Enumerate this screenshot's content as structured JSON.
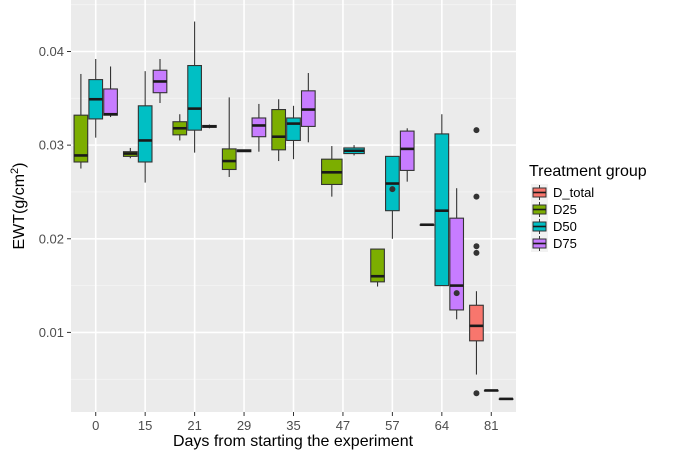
{
  "chart_data": {
    "type": "boxplot",
    "title": "",
    "xlabel": "Days from starting the experiment",
    "ylabel": "EWT(g/cm²)",
    "ylabel_parts": {
      "base": "EWT(g/cm",
      "sup": "2",
      "close": ")"
    },
    "ylim": [
      0.0015,
      0.0455
    ],
    "yticks": [
      0.01,
      0.02,
      0.03,
      0.04
    ],
    "ytick_labels": [
      "0.01",
      "0.02",
      "0.03",
      "0.04"
    ],
    "grid": true,
    "legend_position": "right",
    "categories": [
      "0",
      "15",
      "21",
      "29",
      "35",
      "47",
      "57",
      "64",
      "81"
    ],
    "legend_title": "Treatment group",
    "groups": [
      "D_total",
      "D25",
      "D50",
      "D75"
    ],
    "colors": {
      "D_total": "#F8766D",
      "D25": "#7CAE00",
      "D50": "#00BFC4",
      "D75": "#C77CFF"
    },
    "boxes": [
      {
        "day": "0",
        "group": "D25",
        "whisker_low": 0.0275,
        "q1": 0.0282,
        "median": 0.0289,
        "q3": 0.0332,
        "whisker_high": 0.0376,
        "outliers": []
      },
      {
        "day": "0",
        "group": "D50",
        "whisker_low": 0.0308,
        "q1": 0.0328,
        "median": 0.0349,
        "q3": 0.037,
        "whisker_high": 0.0392,
        "outliers": []
      },
      {
        "day": "0",
        "group": "D75",
        "whisker_low": 0.033,
        "q1": 0.0332,
        "median": 0.0333,
        "q3": 0.036,
        "whisker_high": 0.0384,
        "outliers": []
      },
      {
        "day": "15",
        "group": "D25",
        "whisker_low": 0.0286,
        "q1": 0.0288,
        "median": 0.0291,
        "q3": 0.0293,
        "whisker_high": 0.0297,
        "outliers": []
      },
      {
        "day": "15",
        "group": "D50",
        "whisker_low": 0.026,
        "q1": 0.0282,
        "median": 0.0305,
        "q3": 0.0342,
        "whisker_high": 0.0379,
        "outliers": []
      },
      {
        "day": "15",
        "group": "D75",
        "whisker_low": 0.0345,
        "q1": 0.0356,
        "median": 0.0368,
        "q3": 0.038,
        "whisker_high": 0.0392,
        "outliers": []
      },
      {
        "day": "21",
        "group": "D25",
        "whisker_low": 0.0305,
        "q1": 0.0311,
        "median": 0.0318,
        "q3": 0.0325,
        "whisker_high": 0.0333,
        "outliers": []
      },
      {
        "day": "21",
        "group": "D50",
        "whisker_low": 0.0292,
        "q1": 0.0316,
        "median": 0.0339,
        "q3": 0.0385,
        "whisker_high": 0.0432,
        "outliers": []
      },
      {
        "day": "21",
        "group": "D75",
        "whisker_low": 0.0318,
        "q1": 0.0319,
        "median": 0.032,
        "q3": 0.0321,
        "whisker_high": 0.0322,
        "outliers": []
      },
      {
        "day": "29",
        "group": "D25",
        "whisker_low": 0.0266,
        "q1": 0.0274,
        "median": 0.0283,
        "q3": 0.0296,
        "whisker_high": 0.0351,
        "outliers": []
      },
      {
        "day": "29",
        "group": "D50",
        "whisker_low": 0.0293,
        "q1": 0.0293,
        "median": 0.0294,
        "q3": 0.0295,
        "whisker_high": 0.0295,
        "outliers": []
      },
      {
        "day": "29",
        "group": "D75",
        "whisker_low": 0.0293,
        "q1": 0.0309,
        "median": 0.0321,
        "q3": 0.0329,
        "whisker_high": 0.0344,
        "outliers": []
      },
      {
        "day": "35",
        "group": "D25",
        "whisker_low": 0.0283,
        "q1": 0.0295,
        "median": 0.0309,
        "q3": 0.0338,
        "whisker_high": 0.0349,
        "outliers": []
      },
      {
        "day": "35",
        "group": "D50",
        "whisker_low": 0.0285,
        "q1": 0.0305,
        "median": 0.0323,
        "q3": 0.0329,
        "whisker_high": 0.0342,
        "outliers": []
      },
      {
        "day": "35",
        "group": "D75",
        "whisker_low": 0.0303,
        "q1": 0.032,
        "median": 0.0338,
        "q3": 0.0358,
        "whisker_high": 0.0377,
        "outliers": []
      },
      {
        "day": "47",
        "group": "D25",
        "whisker_low": 0.0245,
        "q1": 0.0258,
        "median": 0.0271,
        "q3": 0.0285,
        "whisker_high": 0.0299,
        "outliers": []
      },
      {
        "day": "47",
        "group": "D50",
        "whisker_low": 0.0289,
        "q1": 0.0291,
        "median": 0.0294,
        "q3": 0.0297,
        "whisker_high": 0.03,
        "outliers": []
      },
      {
        "day": "57",
        "group": "D25",
        "whisker_low": 0.0149,
        "q1": 0.0154,
        "median": 0.016,
        "q3": 0.0189,
        "whisker_high": 0.0189,
        "outliers": []
      },
      {
        "day": "57",
        "group": "D50",
        "whisker_low": 0.02,
        "q1": 0.023,
        "median": 0.0259,
        "q3": 0.0288,
        "whisker_high": 0.0288,
        "outliers": [
          0.0253
        ]
      },
      {
        "day": "57",
        "group": "D75",
        "whisker_low": 0.0261,
        "q1": 0.0273,
        "median": 0.0296,
        "q3": 0.0315,
        "whisker_high": 0.0318,
        "outliers": []
      },
      {
        "day": "64",
        "group": "D25",
        "whisker_low": 0.0215,
        "q1": 0.0215,
        "median": 0.0215,
        "q3": 0.0215,
        "whisker_high": 0.0215,
        "outliers": []
      },
      {
        "day": "64",
        "group": "D50",
        "whisker_low": 0.015,
        "q1": 0.015,
        "median": 0.023,
        "q3": 0.0312,
        "whisker_high": 0.0333,
        "outliers": []
      },
      {
        "day": "64",
        "group": "D75",
        "whisker_low": 0.0114,
        "q1": 0.0124,
        "median": 0.015,
        "q3": 0.0222,
        "whisker_high": 0.0254,
        "outliers": [
          0.0142
        ]
      },
      {
        "day": "81",
        "group": "D_total",
        "whisker_low": 0.0055,
        "q1": 0.0091,
        "median": 0.0107,
        "q3": 0.0129,
        "whisker_high": 0.0144,
        "outliers": [
          0.0035,
          0.0185,
          0.0192,
          0.0245,
          0.0316
        ]
      },
      {
        "day": "81",
        "group": "D50",
        "whisker_low": 0.0038,
        "q1": 0.0038,
        "median": 0.0038,
        "q3": 0.0038,
        "whisker_high": 0.0038,
        "outliers": []
      },
      {
        "day": "81",
        "group": "D75",
        "whisker_low": 0.0029,
        "q1": 0.0029,
        "median": 0.0029,
        "q3": 0.0029,
        "whisker_high": 0.0029,
        "outliers": []
      }
    ]
  }
}
